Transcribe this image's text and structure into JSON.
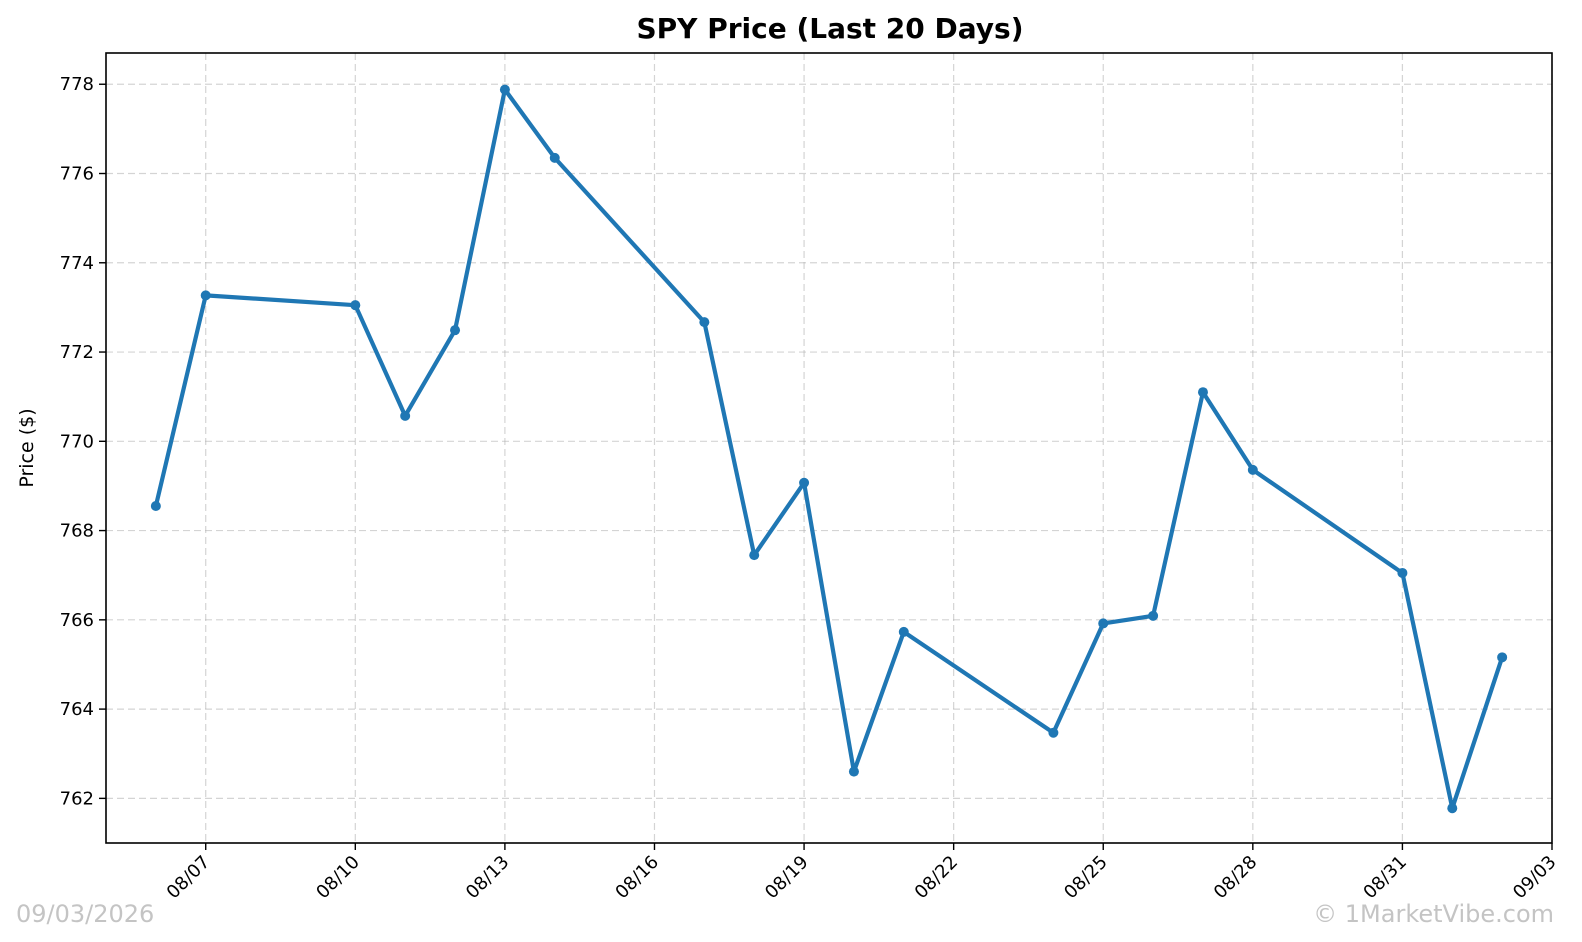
{
  "chart_data": {
    "type": "line",
    "title": "SPY Price (Last 20 Days)",
    "xlabel": "",
    "ylabel": "Price ($)",
    "ylim": [
      761,
      778.7
    ],
    "xlim": [
      "2026-08-05",
      "2026-09-03"
    ],
    "x_ticks": [
      "08/07",
      "08/10",
      "08/13",
      "08/16",
      "08/19",
      "08/22",
      "08/25",
      "08/28",
      "08/31",
      "09/03"
    ],
    "y_ticks": [
      "762",
      "764",
      "766",
      "768",
      "770",
      "772",
      "774",
      "776",
      "778"
    ],
    "grid": true,
    "series": [
      {
        "color": "#1f77b4",
        "points": [
          {
            "x": "2026-08-06",
            "y": 768.55
          },
          {
            "x": "2026-08-07",
            "y": 773.27
          },
          {
            "x": "2026-08-10",
            "y": 773.05
          },
          {
            "x": "2026-08-11",
            "y": 770.57
          },
          {
            "x": "2026-08-12",
            "y": 772.49
          },
          {
            "x": "2026-08-13",
            "y": 777.88
          },
          {
            "x": "2026-08-14",
            "y": 776.35
          },
          {
            "x": "2026-08-17",
            "y": 772.67
          },
          {
            "x": "2026-08-18",
            "y": 767.45
          },
          {
            "x": "2026-08-19",
            "y": 769.07
          },
          {
            "x": "2026-08-20",
            "y": 762.6
          },
          {
            "x": "2026-08-21",
            "y": 765.73
          },
          {
            "x": "2026-08-24",
            "y": 763.47
          },
          {
            "x": "2026-08-25",
            "y": 765.92
          },
          {
            "x": "2026-08-26",
            "y": 766.09
          },
          {
            "x": "2026-08-27",
            "y": 771.1
          },
          {
            "x": "2026-08-28",
            "y": 769.36
          },
          {
            "x": "2026-08-31",
            "y": 767.05
          },
          {
            "x": "2026-09-01",
            "y": 761.78
          },
          {
            "x": "2026-09-02",
            "y": 765.16
          }
        ]
      }
    ]
  },
  "footer": {
    "date_stamp": "09/03/2026",
    "copyright": "© 1MarketVibe.com"
  }
}
